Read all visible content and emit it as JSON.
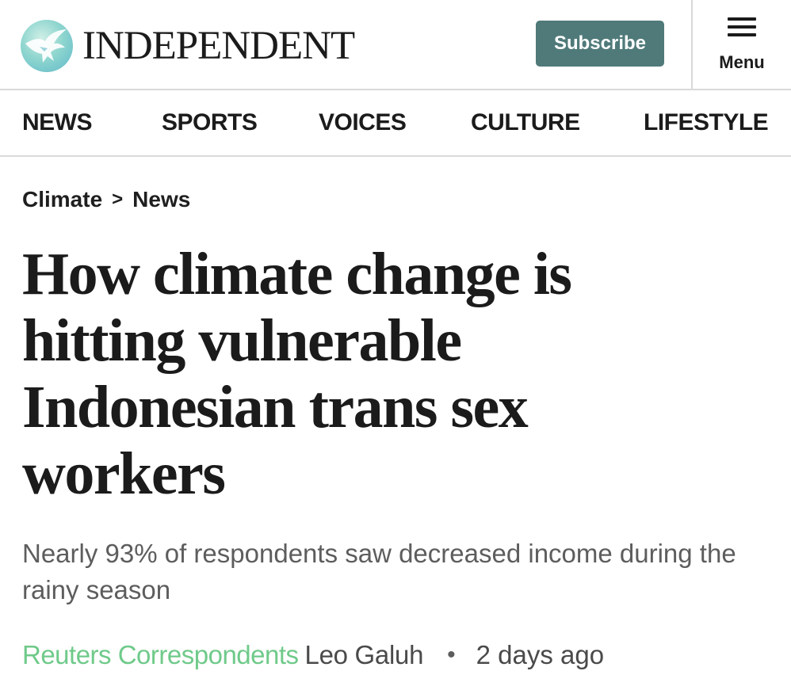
{
  "header": {
    "logo_text": "INDEPENDENT",
    "subscribe_label": "Subscribe",
    "menu_label": "Menu"
  },
  "nav": {
    "items": [
      "NEWS",
      "SPORTS",
      "VOICES",
      "CULTURE",
      "LIFESTYLE"
    ]
  },
  "breadcrumb": {
    "section": "Climate",
    "separator": ">",
    "subsection": "News"
  },
  "article": {
    "headline": "How climate change is hitting vulnerable Indonesian trans sex workers",
    "standfirst": "Nearly 93% of respondents saw decreased income during the rainy season",
    "agency": "Reuters Correspondents",
    "author": "Leo Galuh",
    "dot": "•",
    "time_ago": "2 days ago"
  },
  "colors": {
    "subscribe_bg": "#4f7a79",
    "agency_link": "#6fca8a",
    "divider": "#d9d9d9"
  },
  "icons": {
    "logo": "eagle-logo-icon",
    "menu": "hamburger-menu-icon"
  }
}
